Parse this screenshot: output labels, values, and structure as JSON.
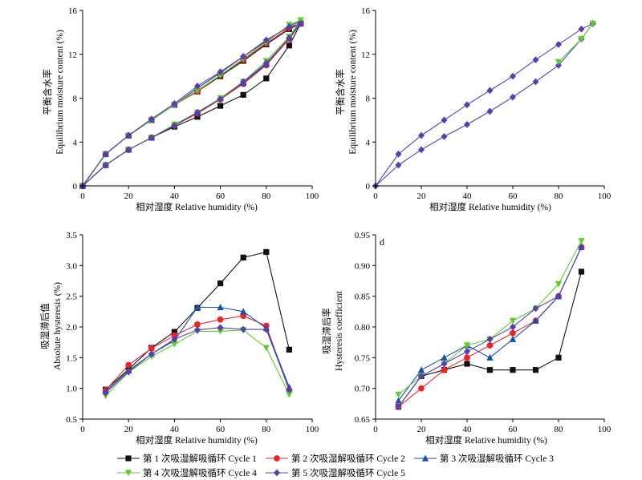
{
  "xlabel": "相对湿度 Relative humidity (%)",
  "ylabel_moisture_cn": "平衡含水率",
  "ylabel_moisture_en": "Equilibrium moisture content (%)",
  "ylabel_abs_cn": "吸湿滞后值",
  "ylabel_abs_en": "Absolute hysteresis (%)",
  "ylabel_coef_cn": "吸湿滞后率",
  "ylabel_coef_en": "Hysteresis coefficient",
  "panel_d_label": "d",
  "colors": {
    "cycle1": "#111111",
    "cycle2": "#e8262a",
    "cycle3": "#1f4fa5",
    "cycle4": "#5fcd2e",
    "cycle5": "#5b3fa8"
  },
  "legend": [
    {
      "key": "cycle1",
      "label": "第 1 次吸湿解吸循环 Cycle 1",
      "marker": "square"
    },
    {
      "key": "cycle2",
      "label": "第 2 次吸湿解吸循环 Cycle 2",
      "marker": "circle"
    },
    {
      "key": "cycle3",
      "label": "第 3 次吸湿解吸循环 Cycle 3",
      "marker": "triangle-up"
    },
    {
      "key": "cycle4",
      "label": "第 4 次吸湿解吸循环 Cycle 4",
      "marker": "triangle-down"
    },
    {
      "key": "cycle5",
      "label": "第 5 次吸湿解吸循环 Cycle 5",
      "marker": "diamond"
    }
  ],
  "chart_data": [
    {
      "type": "line",
      "panel": "a",
      "xlim": [
        0,
        100
      ],
      "ylim": [
        0,
        16
      ],
      "xticks": [
        0,
        20,
        40,
        60,
        80,
        100
      ],
      "yticks": [
        0,
        4,
        8,
        12,
        16
      ],
      "series": [
        {
          "key": "cycle1",
          "name": "第 1 次吸湿解吸循环 Cycle 1",
          "marker": "square",
          "branches": [
            {
              "x": [
                0,
                10,
                20,
                30,
                40,
                50,
                60,
                70,
                80,
                90,
                95
              ],
              "y": [
                0,
                1.9,
                3.3,
                4.4,
                5.4,
                6.3,
                7.3,
                8.3,
                9.8,
                12.8,
                14.8
              ]
            },
            {
              "x": [
                95,
                90,
                80,
                70,
                60,
                50,
                40,
                30,
                20,
                10,
                0
              ],
              "y": [
                14.8,
                14.3,
                12.9,
                11.4,
                10.0,
                8.6,
                7.4,
                6.0,
                4.6,
                2.9,
                0
              ]
            }
          ]
        },
        {
          "key": "cycle2",
          "name": "第 2 次吸湿解吸循环 Cycle 2",
          "marker": "circle",
          "branches": [
            {
              "x": [
                0,
                10,
                20,
                30,
                40,
                50,
                60,
                70,
                80,
                90,
                95
              ],
              "y": [
                0,
                1.9,
                3.3,
                4.4,
                5.5,
                6.6,
                7.9,
                9.3,
                11.0,
                13.4,
                14.8
              ]
            },
            {
              "x": [
                95,
                90,
                80,
                70,
                60,
                50,
                40,
                30,
                20,
                10,
                0
              ],
              "y": [
                14.8,
                14.4,
                13.0,
                11.5,
                10.1,
                8.6,
                7.4,
                6.0,
                4.6,
                2.9,
                0
              ]
            }
          ]
        },
        {
          "key": "cycle3",
          "name": "第 3 次吸湿解吸循环 Cycle 3",
          "marker": "triangle-up",
          "branches": [
            {
              "x": [
                0,
                10,
                20,
                30,
                40,
                50,
                60,
                70,
                80,
                90,
                95
              ],
              "y": [
                0,
                1.9,
                3.3,
                4.4,
                5.6,
                6.7,
                8.0,
                9.4,
                11.1,
                13.5,
                15.0
              ]
            },
            {
              "x": [
                95,
                90,
                80,
                70,
                60,
                50,
                40,
                30,
                20,
                10,
                0
              ],
              "y": [
                15.0,
                14.6,
                13.2,
                11.8,
                10.3,
                8.9,
                7.4,
                6.0,
                4.6,
                2.9,
                0
              ]
            }
          ]
        },
        {
          "key": "cycle4",
          "name": "第 4 次吸湿解吸循环 Cycle 4",
          "marker": "triangle-down",
          "branches": [
            {
              "x": [
                0,
                10,
                20,
                30,
                40,
                50,
                60,
                70,
                80,
                90,
                95
              ],
              "y": [
                0,
                1.9,
                3.3,
                4.4,
                5.6,
                6.7,
                8.0,
                9.5,
                11.4,
                13.6,
                15.1
              ]
            },
            {
              "x": [
                95,
                90,
                80,
                70,
                60,
                50,
                40,
                30,
                20,
                10,
                0
              ],
              "y": [
                15.1,
                14.7,
                13.1,
                11.6,
                10.1,
                8.7,
                7.4,
                6.0,
                4.6,
                2.9,
                0
              ]
            }
          ]
        },
        {
          "key": "cycle5",
          "name": "第 5 次吸湿解吸循环 Cycle 5",
          "marker": "diamond",
          "branches": [
            {
              "x": [
                0,
                10,
                20,
                30,
                40,
                50,
                60,
                70,
                80,
                90,
                95
              ],
              "y": [
                0,
                1.9,
                3.3,
                4.4,
                5.5,
                6.7,
                7.9,
                9.5,
                11.2,
                13.5,
                14.8
              ]
            },
            {
              "x": [
                95,
                90,
                80,
                70,
                60,
                50,
                40,
                30,
                20,
                10,
                0
              ],
              "y": [
                14.8,
                14.5,
                13.3,
                11.8,
                10.4,
                9.1,
                7.5,
                6.1,
                4.6,
                2.9,
                0
              ]
            }
          ]
        }
      ]
    },
    {
      "type": "line",
      "panel": "b",
      "xlim": [
        0,
        100
      ],
      "ylim": [
        0,
        16
      ],
      "xticks": [
        0,
        20,
        40,
        60,
        80,
        100
      ],
      "yticks": [
        0,
        4,
        8,
        12,
        16
      ],
      "series": [
        {
          "key": "cycle5",
          "name": "第 5 次吸湿解吸循环 Cycle 5",
          "marker": "diamond",
          "branches": [
            {
              "x": [
                0,
                10,
                20,
                30,
                40,
                50,
                60,
                70,
                80,
                90,
                95
              ],
              "y": [
                0,
                1.9,
                3.3,
                4.5,
                5.6,
                6.8,
                8.1,
                9.5,
                11.0,
                13.4,
                14.8
              ]
            },
            {
              "x": [
                95,
                90,
                80,
                70,
                60,
                50,
                40,
                30,
                20,
                10,
                0
              ],
              "y": [
                14.8,
                14.3,
                12.9,
                11.5,
                10.0,
                8.7,
                7.4,
                6.0,
                4.6,
                2.9,
                0
              ]
            }
          ]
        },
        {
          "key": "cycle4",
          "name": "第 4 次吸湿解吸循环 Cycle 4",
          "marker": "triangle-down",
          "branches": [
            {
              "x": [
                80,
                90,
                95
              ],
              "y": [
                11.3,
                13.4,
                14.8
              ]
            }
          ]
        }
      ]
    },
    {
      "type": "line",
      "panel": "c",
      "xlim": [
        0,
        100
      ],
      "ylim": [
        0.5,
        3.5
      ],
      "xticks": [
        0,
        20,
        40,
        60,
        80,
        100
      ],
      "yticks": [
        0.5,
        1.0,
        1.5,
        2.0,
        2.5,
        3.0,
        3.5
      ],
      "series": [
        {
          "key": "cycle1",
          "name": "第 1 次吸湿解吸循环 Cycle 1",
          "marker": "square",
          "x": [
            10,
            20,
            30,
            40,
            50,
            60,
            70,
            80,
            90
          ],
          "y": [
            0.98,
            1.31,
            1.66,
            1.92,
            2.31,
            2.71,
            3.13,
            3.22,
            1.63
          ]
        },
        {
          "key": "cycle2",
          "name": "第 2 次吸湿解吸循环 Cycle 2",
          "marker": "circle",
          "x": [
            10,
            20,
            30,
            40,
            50,
            60,
            70,
            80,
            90
          ],
          "y": [
            0.97,
            1.38,
            1.65,
            1.86,
            2.04,
            2.12,
            2.18,
            2.02,
            0.96
          ]
        },
        {
          "key": "cycle3",
          "name": "第 3 次吸湿解吸循环 Cycle 3",
          "marker": "triangle-up",
          "x": [
            10,
            20,
            30,
            40,
            50,
            60,
            70,
            80,
            90
          ],
          "y": [
            0.95,
            1.29,
            1.56,
            1.78,
            2.32,
            2.32,
            2.25,
            1.98,
            1.02
          ]
        },
        {
          "key": "cycle4",
          "name": "第 4 次吸湿解吸循环 Cycle 4",
          "marker": "triangle-down",
          "x": [
            10,
            20,
            30,
            40,
            50,
            60,
            70,
            80,
            90
          ],
          "y": [
            0.88,
            1.26,
            1.52,
            1.72,
            1.93,
            1.93,
            1.95,
            1.66,
            0.9
          ]
        },
        {
          "key": "cycle5",
          "name": "第 5 次吸湿解吸循环 Cycle 5",
          "marker": "diamond",
          "x": [
            10,
            20,
            30,
            40,
            50,
            60,
            70,
            80,
            90
          ],
          "y": [
            0.93,
            1.27,
            1.56,
            1.8,
            1.95,
            1.99,
            1.96,
            1.96,
            0.98
          ]
        }
      ]
    },
    {
      "type": "line",
      "panel": "d",
      "xlim": [
        0,
        100
      ],
      "ylim": [
        0.65,
        0.95
      ],
      "xticks": [
        0,
        20,
        40,
        60,
        80,
        100
      ],
      "yticks": [
        0.65,
        0.7,
        0.75,
        0.8,
        0.85,
        0.9,
        0.95
      ],
      "series": [
        {
          "key": "cycle1",
          "name": "第 1 次吸湿解吸循环 Cycle 1",
          "marker": "square",
          "x": [
            10,
            20,
            30,
            40,
            50,
            60,
            70,
            80,
            90
          ],
          "y": [
            0.67,
            0.72,
            0.73,
            0.74,
            0.73,
            0.73,
            0.73,
            0.75,
            0.89
          ]
        },
        {
          "key": "cycle2",
          "name": "第 2 次吸湿解吸循环 Cycle 2",
          "marker": "circle",
          "x": [
            10,
            20,
            30,
            40,
            50,
            60,
            70,
            80,
            90
          ],
          "y": [
            0.67,
            0.7,
            0.73,
            0.75,
            0.77,
            0.79,
            0.81,
            0.85,
            0.93
          ]
        },
        {
          "key": "cycle3",
          "name": "第 3 次吸湿解吸循环 Cycle 3",
          "marker": "triangle-up",
          "x": [
            10,
            20,
            30,
            40,
            50,
            60,
            70,
            80,
            90
          ],
          "y": [
            0.68,
            0.73,
            0.75,
            0.77,
            0.75,
            0.78,
            0.81,
            0.85,
            0.93
          ]
        },
        {
          "key": "cycle4",
          "name": "第 4 次吸湿解吸循环 Cycle 4",
          "marker": "triangle-down",
          "x": [
            10,
            20,
            30,
            40,
            50,
            60,
            70,
            80,
            90
          ],
          "y": [
            0.69,
            0.72,
            0.74,
            0.77,
            0.78,
            0.81,
            0.83,
            0.87,
            0.94
          ]
        },
        {
          "key": "cycle5",
          "name": "第 5 次吸湿解吸循环 Cycle 5",
          "marker": "diamond",
          "x": [
            10,
            20,
            30,
            40,
            50,
            60,
            70,
            80,
            90
          ],
          "y": [
            0.67,
            0.72,
            0.74,
            0.76,
            0.78,
            0.8,
            0.83,
            0.85,
            0.93
          ]
        }
      ]
    }
  ]
}
